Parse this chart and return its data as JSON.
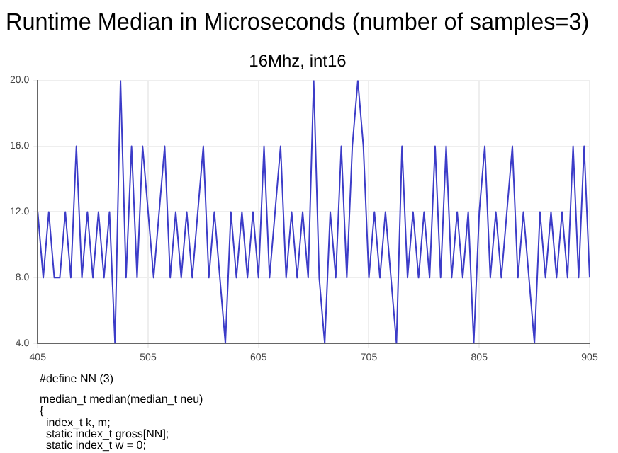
{
  "chart_data": {
    "type": "line",
    "title": "Runtime Median in Microseconds (number of samples=3)",
    "subtitle": "16Mhz, int16",
    "x": [
      405,
      410,
      415,
      420,
      425,
      430,
      435,
      440,
      445,
      450,
      455,
      460,
      465,
      470,
      475,
      480,
      485,
      490,
      495,
      500,
      505,
      510,
      515,
      520,
      525,
      530,
      535,
      540,
      545,
      550,
      555,
      560,
      565,
      570,
      575,
      580,
      585,
      590,
      595,
      600,
      605,
      610,
      615,
      620,
      625,
      630,
      635,
      640,
      645,
      650,
      655,
      660,
      665,
      670,
      675,
      680,
      685,
      690,
      695,
      700,
      705,
      710,
      715,
      720,
      725,
      730,
      735,
      740,
      745,
      750,
      755,
      760,
      765,
      770,
      775,
      780,
      785,
      790,
      795,
      800,
      805,
      810,
      815,
      820,
      825,
      830,
      835,
      840,
      845,
      850,
      855,
      860,
      865,
      870,
      875,
      880,
      885,
      890,
      895,
      900,
      905
    ],
    "series": [
      {
        "color": "#3c3cc8",
        "values": [
          12,
          8,
          12,
          8,
          8,
          12,
          8,
          16,
          8,
          12,
          8,
          12,
          8,
          12,
          4,
          20,
          8,
          16,
          8,
          16,
          12,
          8,
          12,
          16,
          8,
          12,
          8,
          12,
          8,
          12,
          16,
          8,
          12,
          8,
          4,
          12,
          8,
          12,
          8,
          12,
          8,
          16,
          8,
          12,
          16,
          8,
          12,
          8,
          12,
          8,
          20,
          8,
          4,
          12,
          8,
          16,
          8,
          16,
          20,
          16,
          8,
          12,
          8,
          12,
          8,
          4,
          16,
          8,
          12,
          8,
          12,
          8,
          16,
          8,
          16,
          8,
          12,
          8,
          12,
          4,
          12,
          16,
          8,
          12,
          8,
          12,
          16,
          8,
          12,
          8,
          4,
          12,
          8,
          12,
          8,
          12,
          8,
          16,
          8,
          16,
          8
        ]
      }
    ],
    "xlim": [
      405,
      905
    ],
    "xticks": [
      405,
      505,
      605,
      705,
      805,
      905
    ],
    "ylim": [
      4,
      20
    ],
    "yticks": [
      {
        "value": 4,
        "label": "4.0"
      },
      {
        "value": 8,
        "label": "8.0"
      },
      {
        "value": 12,
        "label": "12.0"
      },
      {
        "value": 16,
        "label": "16.0"
      },
      {
        "value": 20,
        "label": "20.0"
      }
    ],
    "grid": true,
    "legend": false,
    "marker": "none",
    "line_style": "solid",
    "annotations": [
      "#define NN (3)",
      "median_t median(median_t neu)",
      "{",
      "  index_t k, m;",
      "  static index_t gross[NN];",
      "  static index_t w = 0;"
    ]
  }
}
